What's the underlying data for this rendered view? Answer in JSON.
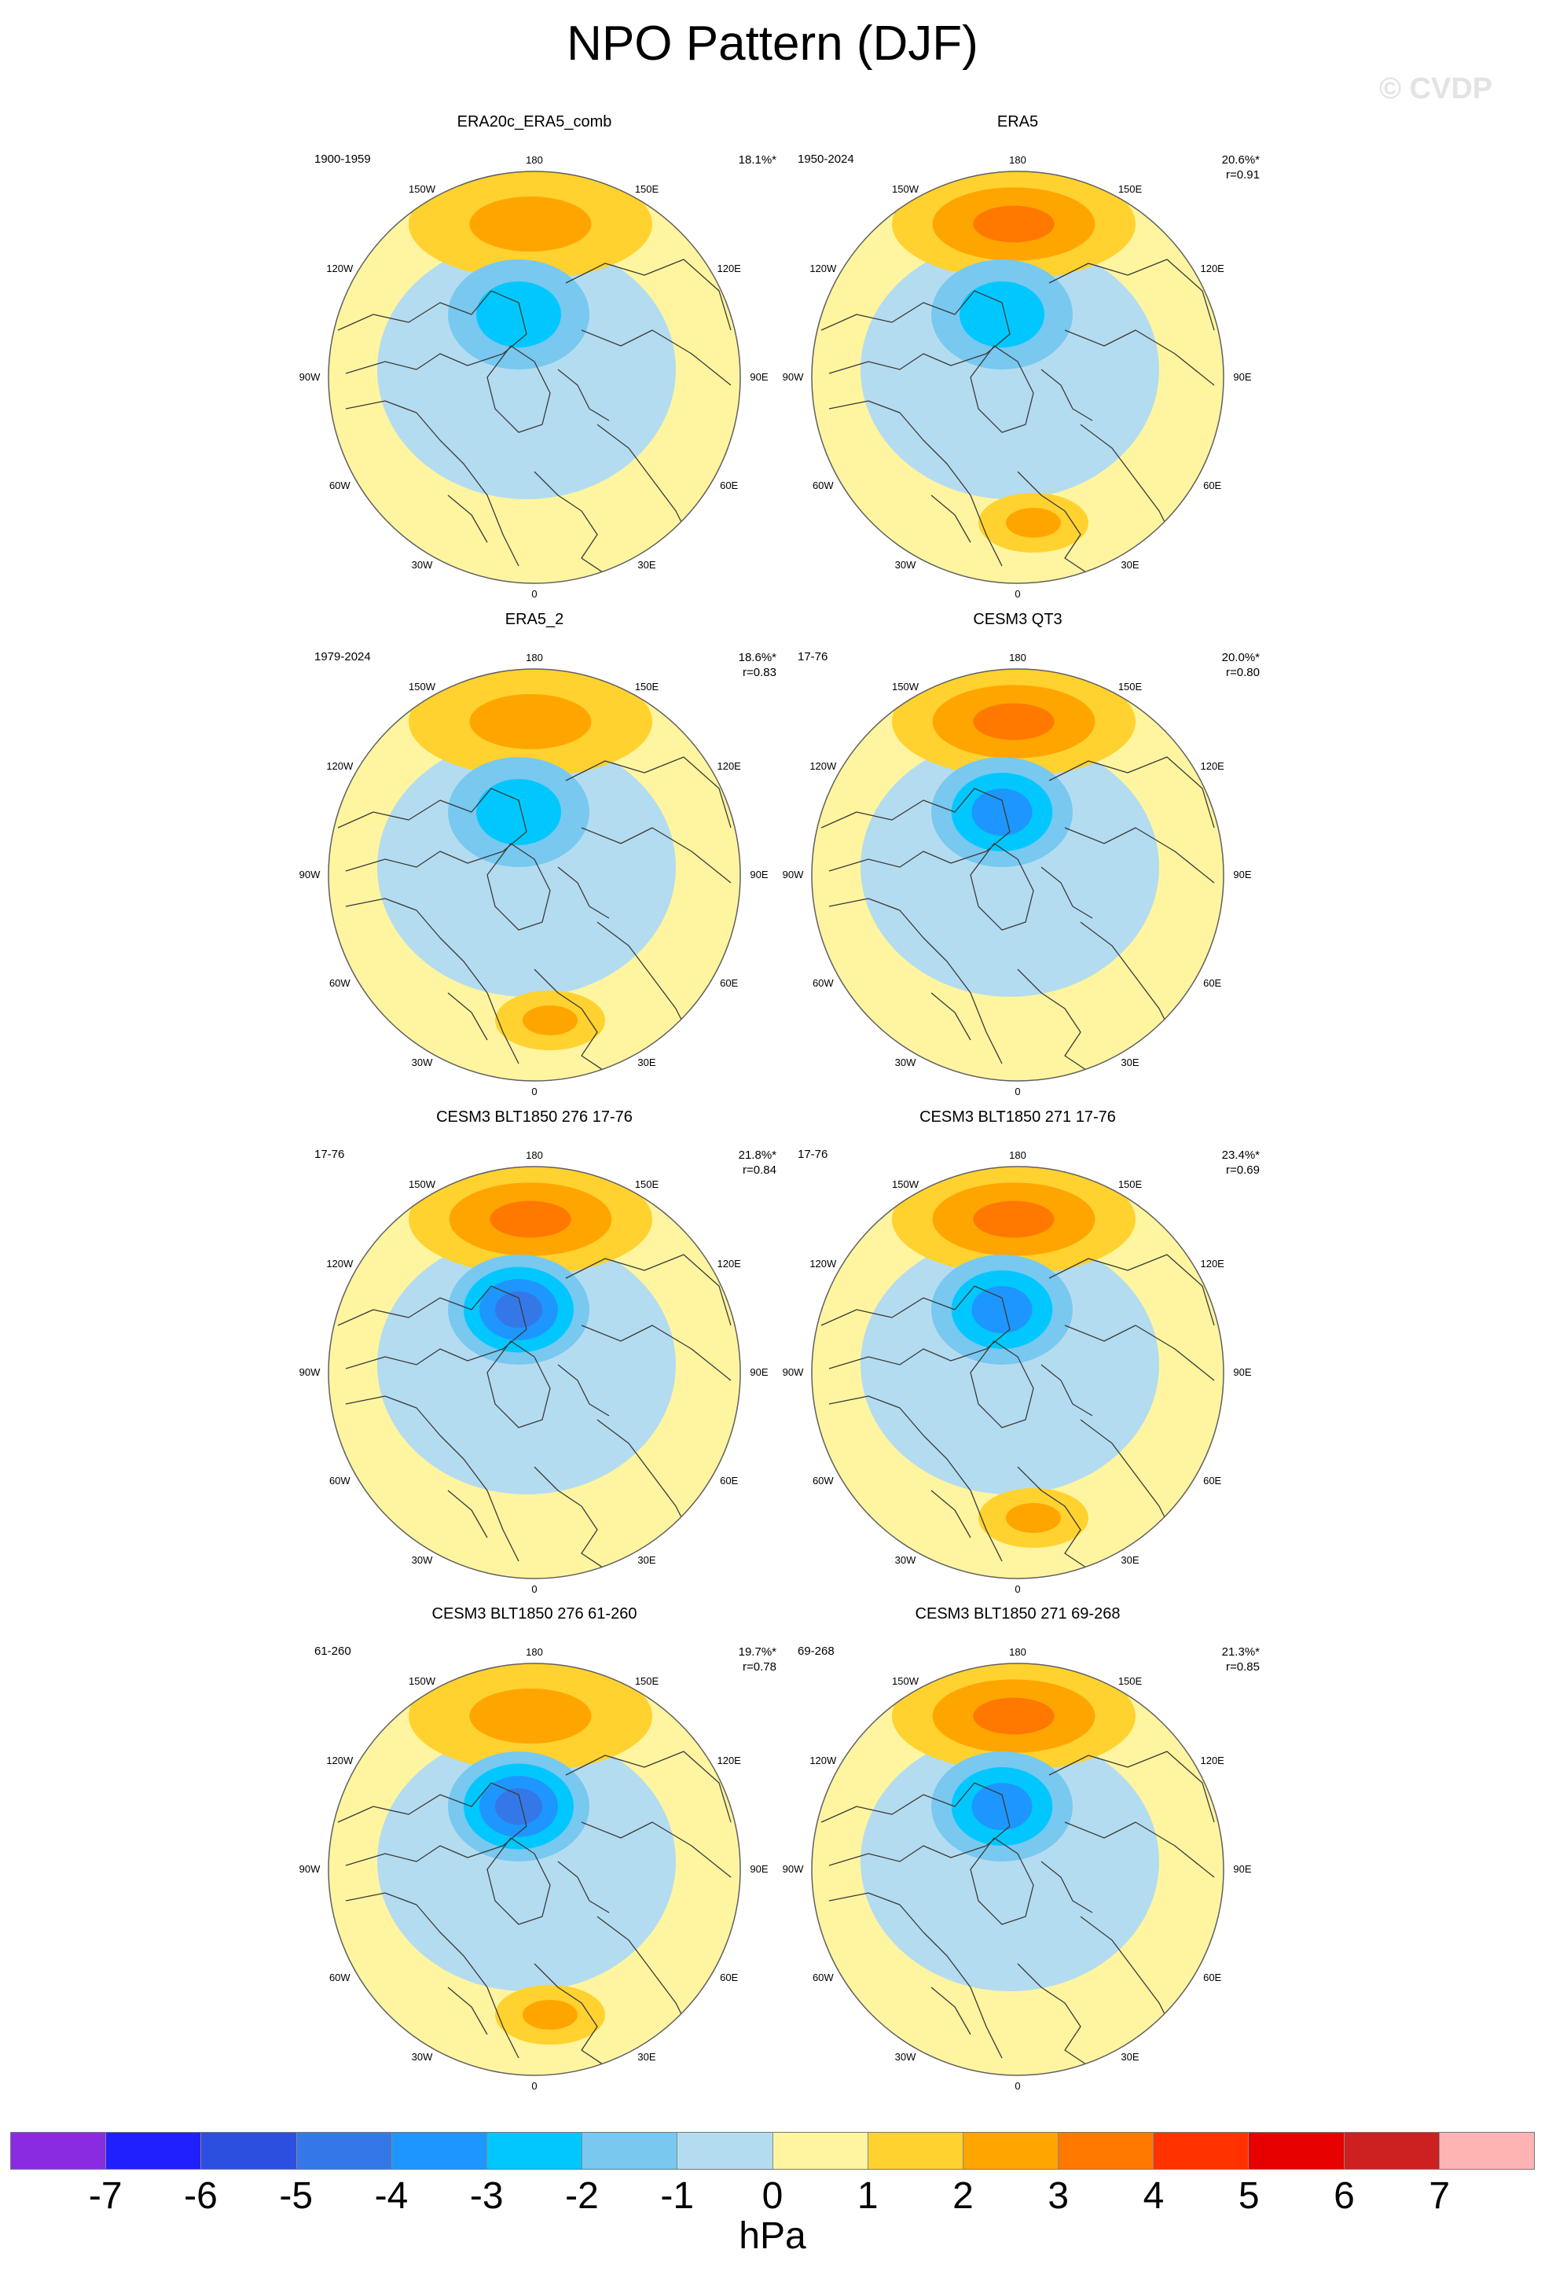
{
  "title": "NPO Pattern (DJF)",
  "watermark": "© CVDP",
  "colors": {
    "background": "#ffffff",
    "coast": "#3a3a3a",
    "ring": "#606060"
  },
  "lon_labels": [
    "180",
    "150E",
    "120E",
    "90E",
    "60E",
    "30E",
    "0",
    "30W",
    "60W",
    "90W",
    "120W",
    "150W"
  ],
  "panels": [
    {
      "title": "ERA20c_ERA5_comb",
      "period": "1900-1959",
      "pct": "18.1%*",
      "r": "",
      "centers": {
        "low": -3,
        "high": 2,
        "atl": 0
      }
    },
    {
      "title": "ERA5",
      "period": "1950-2024",
      "pct": "20.6%*",
      "r": "r=0.91",
      "centers": {
        "low": -3,
        "high": 3,
        "atl": 2
      }
    },
    {
      "title": "ERA5_2",
      "period": "1979-2024",
      "pct": "18.6%*",
      "r": "r=0.83",
      "centers": {
        "low": -3,
        "high": 2,
        "atl": 2
      }
    },
    {
      "title": "CESM3 QT3",
      "period": "17-76",
      "pct": "20.0%*",
      "r": "r=0.80",
      "centers": {
        "low": -4,
        "high": 3,
        "atl": 0
      }
    },
    {
      "title": "CESM3 BLT1850 276 17-76",
      "period": "17-76",
      "pct": "21.8%*",
      "r": "r=0.84",
      "centers": {
        "low": -5,
        "high": 3,
        "atl": 0
      }
    },
    {
      "title": "CESM3 BLT1850 271 17-76",
      "period": "17-76",
      "pct": "23.4%*",
      "r": "r=0.69",
      "centers": {
        "low": -4,
        "high": 3,
        "atl": 2
      }
    },
    {
      "title": "CESM3 BLT1850 276 61-260",
      "period": "61-260",
      "pct": "19.7%*",
      "r": "r=0.78",
      "centers": {
        "low": -5,
        "high": 2,
        "atl": 2
      }
    },
    {
      "title": "CESM3 BLT1850 271 69-268",
      "period": "69-268",
      "pct": "21.3%*",
      "r": "r=0.85",
      "centers": {
        "low": -4,
        "high": 3,
        "atl": 0
      }
    }
  ],
  "colorbar": {
    "units": "hPa",
    "ticks": [
      "-7",
      "-6",
      "-5",
      "-4",
      "-3",
      "-2",
      "-1",
      "0",
      "1",
      "2",
      "3",
      "4",
      "5",
      "6",
      "7"
    ],
    "colors": [
      "#8a2be2",
      "#2020ff",
      "#2c4fe0",
      "#3478e8",
      "#1e96ff",
      "#00c8ff",
      "#78c8f0",
      "#b4dcf0",
      "#fff5a0",
      "#ffd230",
      "#ffa500",
      "#ff7800",
      "#ff3200",
      "#e60000",
      "#cd2020",
      "#ffb4b4"
    ]
  }
}
